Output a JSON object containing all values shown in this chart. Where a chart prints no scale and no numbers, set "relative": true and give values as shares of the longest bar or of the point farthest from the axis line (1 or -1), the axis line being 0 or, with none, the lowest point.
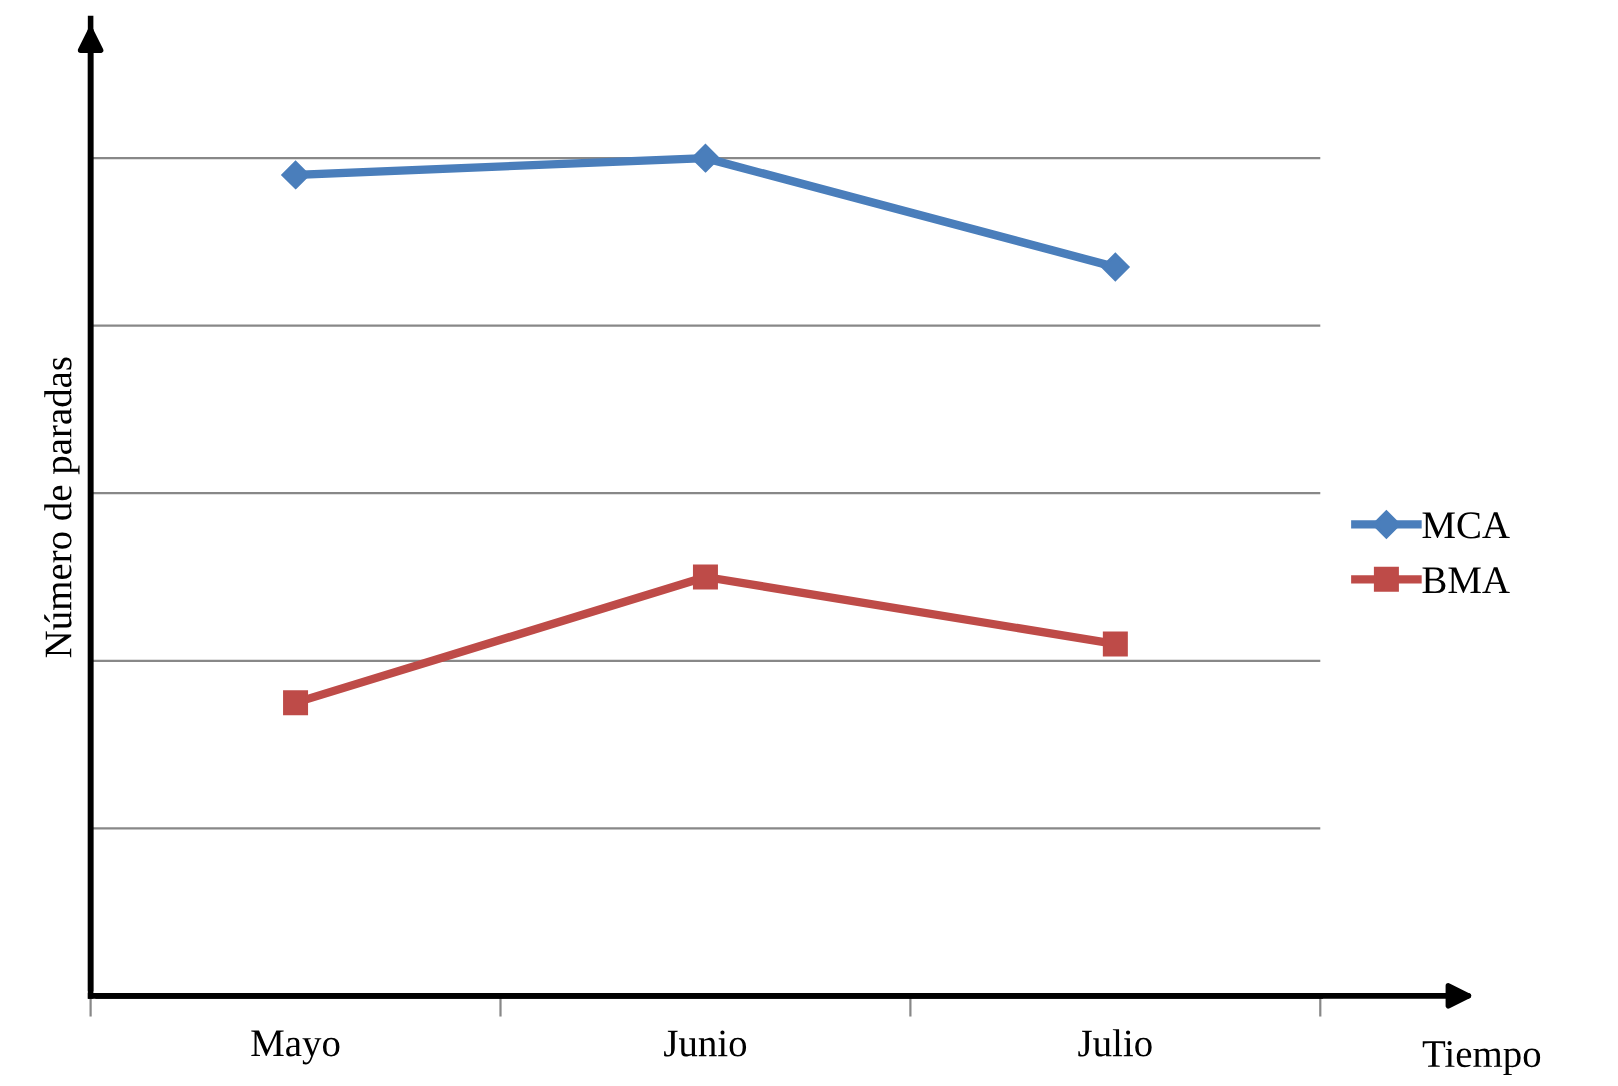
{
  "chart_data": {
    "type": "line",
    "xlabel": "Tiempo",
    "ylabel": "Número de paradas",
    "categories": [
      "Mayo",
      "Junio",
      "Julio"
    ],
    "relative": true,
    "grid": "y",
    "legend": "right",
    "series": [
      {
        "name": "MCA",
        "color": "#4a7ebb",
        "marker": "diamond",
        "values": [
          0.98,
          1,
          0.87
        ]
      },
      {
        "name": "BMA",
        "color": "#be4b48",
        "marker": "square",
        "values": [
          0.35,
          0.5,
          0.42
        ]
      }
    ]
  }
}
